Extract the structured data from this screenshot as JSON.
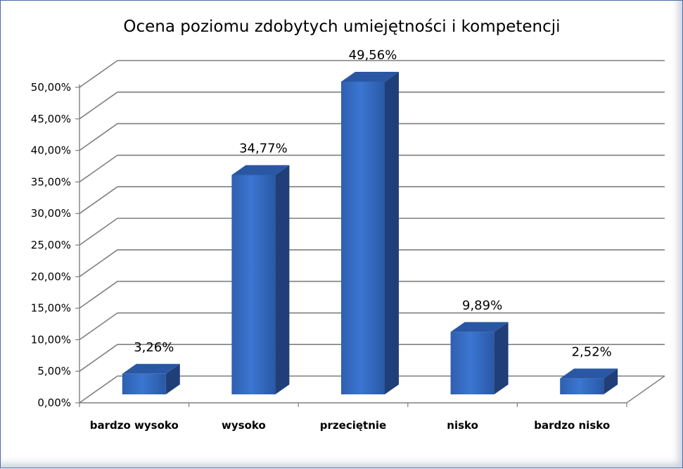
{
  "chart_data": {
    "type": "bar",
    "title": "Ocena poziomu zdobytych umiejętności i kompetencji",
    "categories": [
      "bardzo wysoko",
      "wysoko",
      "przeciętnie",
      "nisko",
      "bardzo nisko"
    ],
    "values": [
      3.26,
      34.77,
      49.56,
      9.89,
      2.52
    ],
    "value_labels": [
      "3,26%",
      "34,77%",
      "49,56%",
      "9,89%",
      "2,52%"
    ],
    "yticks": [
      "0,00%",
      "5,00%",
      "10,00%",
      "15,00%",
      "20,00%",
      "25,00%",
      "30,00%",
      "35,00%",
      "40,00%",
      "45,00%",
      "50,00%"
    ],
    "ylim": [
      0,
      50
    ],
    "xlabel": "",
    "ylabel": "",
    "grid": true,
    "legend": "none",
    "style": "3d-column",
    "bar_color": "#3a6cc2"
  }
}
